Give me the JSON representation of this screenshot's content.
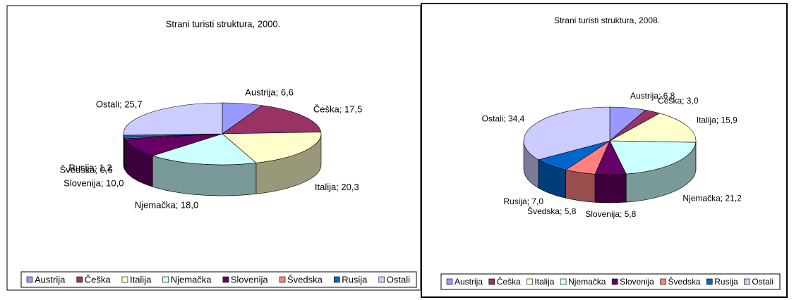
{
  "chart_data": [
    {
      "type": "pie3d",
      "title": "Strani turisti struktura, 2000.",
      "categories": [
        "Austrija",
        "Češka",
        "Italija",
        "Njemačka",
        "Slovenija",
        "Švedska",
        "Rusija",
        "Ostali"
      ],
      "values": [
        6.6,
        17.5,
        20.3,
        18.0,
        10.0,
        0.6,
        1.2,
        25.7
      ],
      "value_labels": [
        "Austrija; 6,6",
        "Češka; 17,5",
        "Italija; 20,3",
        "Njemačka; 18,0",
        "Slovenija; 10,0",
        "Švedska; 0,6",
        "Rusija; 1,2",
        "Ostali; 25,7"
      ],
      "colors": [
        "#9999ff",
        "#993366",
        "#ffffcc",
        "#ccffff",
        "#660066",
        "#ff8080",
        "#0066cc",
        "#ccccff"
      ],
      "legend": "bottom"
    },
    {
      "type": "pie3d",
      "title": "Strani turisti struktura, 2008.",
      "categories": [
        "Austrija",
        "Češka",
        "Italija",
        "Njemačka",
        "Slovenija",
        "Švedska",
        "Rusija",
        "Ostali"
      ],
      "values": [
        6.8,
        3.0,
        15.9,
        21.2,
        5.8,
        5.8,
        7.0,
        34.4
      ],
      "value_labels": [
        "Austrija; 6,8",
        "Češka; 3,0",
        "Italija; 15,9",
        "Njemačka; 21,2",
        "Slovenija; 5,8",
        "Švedska; 5,8",
        "Rusija; 7,0",
        "Ostali; 34,4"
      ],
      "colors": [
        "#9999ff",
        "#993366",
        "#ffffcc",
        "#ccffff",
        "#660066",
        "#ff8080",
        "#0066cc",
        "#ccccff"
      ],
      "legend": "bottom"
    }
  ]
}
